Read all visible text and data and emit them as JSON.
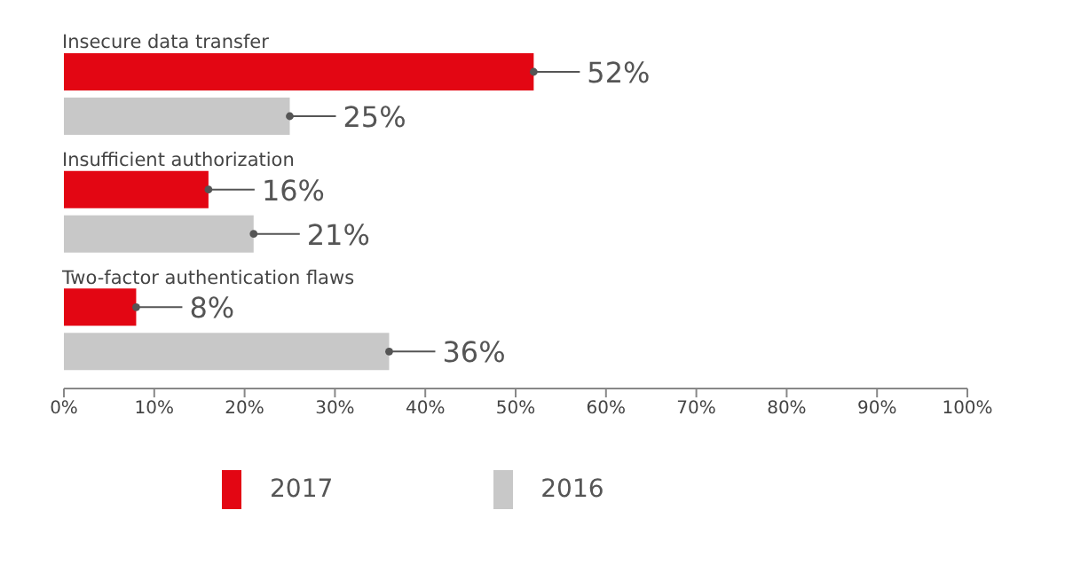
{
  "chart_data": {
    "type": "bar",
    "orientation": "horizontal",
    "categories": [
      "Insecure data transfer",
      "Insufficient authorization",
      "Two-factor authentication flaws"
    ],
    "series": [
      {
        "name": "2017",
        "color": "#e30613",
        "values": [
          52,
          16,
          8
        ],
        "value_labels": [
          "52%",
          "16%",
          "8%"
        ]
      },
      {
        "name": "2016",
        "color": "#c8c8c8",
        "values": [
          25,
          21,
          36
        ],
        "value_labels": [
          "25%",
          "21%",
          "36%"
        ]
      }
    ],
    "xlim": [
      0,
      100
    ],
    "xticks": [
      {
        "value": 0,
        "label": "0%"
      },
      {
        "value": 10,
        "label": "10%"
      },
      {
        "value": 20,
        "label": "20%"
      },
      {
        "value": 30,
        "label": "30%"
      },
      {
        "value": 40,
        "label": "40%"
      },
      {
        "value": 50,
        "label": "50%"
      },
      {
        "value": 60,
        "label": "60%"
      },
      {
        "value": 70,
        "label": "70%"
      },
      {
        "value": 80,
        "label": "80%"
      },
      {
        "value": 90,
        "label": "90%"
      },
      {
        "value": 100,
        "label": "100%"
      }
    ],
    "grid": false,
    "legend": "bottom"
  }
}
